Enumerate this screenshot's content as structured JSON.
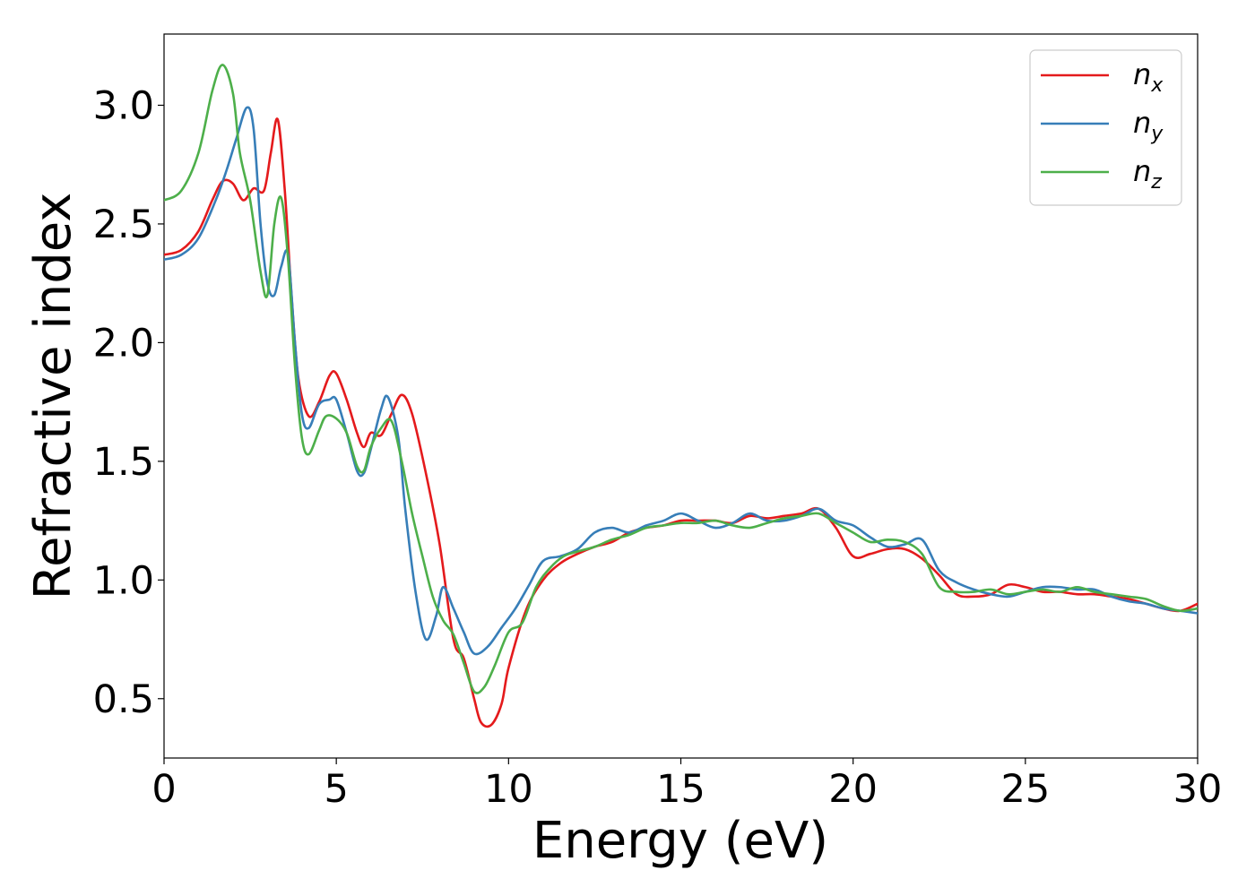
{
  "chart_data": {
    "type": "line",
    "title": "",
    "xlabel": "Energy (eV)",
    "ylabel": "Refractive index",
    "xlim": [
      0,
      30
    ],
    "ylim": [
      0.25,
      3.3
    ],
    "xticks": [
      0,
      5,
      10,
      15,
      20,
      25,
      30
    ],
    "xtick_labels": [
      "0",
      "5",
      "10",
      "15",
      "20",
      "25",
      "30"
    ],
    "yticks": [
      0.5,
      1.0,
      1.5,
      2.0,
      2.5,
      3.0
    ],
    "ytick_labels": [
      "0.5",
      "1.0",
      "1.5",
      "2.0",
      "2.5",
      "3.0"
    ],
    "grid": false,
    "legend_position": "top-right",
    "series": [
      {
        "name": "n",
        "subscript": "x",
        "color": "#e41a1c",
        "points": [
          [
            0,
            2.37
          ],
          [
            0.5,
            2.39
          ],
          [
            1.0,
            2.47
          ],
          [
            1.4,
            2.6
          ],
          [
            1.7,
            2.68
          ],
          [
            2.0,
            2.67
          ],
          [
            2.3,
            2.6
          ],
          [
            2.6,
            2.65
          ],
          [
            2.9,
            2.64
          ],
          [
            3.1,
            2.8
          ],
          [
            3.3,
            2.94
          ],
          [
            3.5,
            2.65
          ],
          [
            3.7,
            2.2
          ],
          [
            3.9,
            1.85
          ],
          [
            4.2,
            1.69
          ],
          [
            4.5,
            1.75
          ],
          [
            4.8,
            1.86
          ],
          [
            5.0,
            1.87
          ],
          [
            5.3,
            1.76
          ],
          [
            5.6,
            1.62
          ],
          [
            5.8,
            1.56
          ],
          [
            6.0,
            1.62
          ],
          [
            6.3,
            1.61
          ],
          [
            6.6,
            1.7
          ],
          [
            6.9,
            1.78
          ],
          [
            7.2,
            1.7
          ],
          [
            7.6,
            1.45
          ],
          [
            8.0,
            1.15
          ],
          [
            8.4,
            0.75
          ],
          [
            8.7,
            0.67
          ],
          [
            9.0,
            0.5
          ],
          [
            9.2,
            0.4
          ],
          [
            9.5,
            0.39
          ],
          [
            9.8,
            0.48
          ],
          [
            10.0,
            0.63
          ],
          [
            10.5,
            0.87
          ],
          [
            11.0,
            1.0
          ],
          [
            11.5,
            1.07
          ],
          [
            12.0,
            1.11
          ],
          [
            12.5,
            1.14
          ],
          [
            13.0,
            1.16
          ],
          [
            13.5,
            1.2
          ],
          [
            14.0,
            1.22
          ],
          [
            14.5,
            1.23
          ],
          [
            15.0,
            1.25
          ],
          [
            15.5,
            1.25
          ],
          [
            16.0,
            1.25
          ],
          [
            16.5,
            1.24
          ],
          [
            17.0,
            1.27
          ],
          [
            17.5,
            1.26
          ],
          [
            18.0,
            1.27
          ],
          [
            18.5,
            1.28
          ],
          [
            19.0,
            1.3
          ],
          [
            19.5,
            1.22
          ],
          [
            20.0,
            1.1
          ],
          [
            20.5,
            1.11
          ],
          [
            21.0,
            1.13
          ],
          [
            21.5,
            1.13
          ],
          [
            22.0,
            1.09
          ],
          [
            22.5,
            1.02
          ],
          [
            23.0,
            0.94
          ],
          [
            23.5,
            0.93
          ],
          [
            24.0,
            0.94
          ],
          [
            24.5,
            0.98
          ],
          [
            25.0,
            0.97
          ],
          [
            25.5,
            0.95
          ],
          [
            26.0,
            0.95
          ],
          [
            26.5,
            0.94
          ],
          [
            27.0,
            0.94
          ],
          [
            27.5,
            0.93
          ],
          [
            28.0,
            0.92
          ],
          [
            28.5,
            0.9
          ],
          [
            29.0,
            0.88
          ],
          [
            29.5,
            0.87
          ],
          [
            30.0,
            0.9
          ]
        ]
      },
      {
        "name": "n",
        "subscript": "y",
        "color": "#377eb8",
        "points": [
          [
            0,
            2.35
          ],
          [
            0.5,
            2.37
          ],
          [
            1.0,
            2.44
          ],
          [
            1.5,
            2.6
          ],
          [
            1.8,
            2.72
          ],
          [
            2.1,
            2.86
          ],
          [
            2.4,
            2.99
          ],
          [
            2.6,
            2.9
          ],
          [
            2.8,
            2.5
          ],
          [
            3.0,
            2.25
          ],
          [
            3.2,
            2.2
          ],
          [
            3.4,
            2.32
          ],
          [
            3.6,
            2.37
          ],
          [
            3.8,
            2.0
          ],
          [
            4.0,
            1.7
          ],
          [
            4.2,
            1.64
          ],
          [
            4.5,
            1.74
          ],
          [
            4.8,
            1.76
          ],
          [
            5.0,
            1.76
          ],
          [
            5.3,
            1.62
          ],
          [
            5.6,
            1.46
          ],
          [
            5.8,
            1.45
          ],
          [
            6.0,
            1.55
          ],
          [
            6.3,
            1.72
          ],
          [
            6.5,
            1.77
          ],
          [
            6.8,
            1.6
          ],
          [
            7.0,
            1.3
          ],
          [
            7.3,
            0.95
          ],
          [
            7.6,
            0.75
          ],
          [
            7.9,
            0.85
          ],
          [
            8.1,
            0.97
          ],
          [
            8.4,
            0.88
          ],
          [
            8.7,
            0.78
          ],
          [
            9.0,
            0.69
          ],
          [
            9.4,
            0.72
          ],
          [
            9.8,
            0.8
          ],
          [
            10.2,
            0.88
          ],
          [
            10.6,
            0.98
          ],
          [
            11.0,
            1.08
          ],
          [
            11.5,
            1.1
          ],
          [
            12.0,
            1.13
          ],
          [
            12.5,
            1.2
          ],
          [
            13.0,
            1.22
          ],
          [
            13.5,
            1.2
          ],
          [
            14.0,
            1.23
          ],
          [
            14.5,
            1.25
          ],
          [
            15.0,
            1.28
          ],
          [
            15.5,
            1.25
          ],
          [
            16.0,
            1.22
          ],
          [
            16.5,
            1.24
          ],
          [
            17.0,
            1.28
          ],
          [
            17.5,
            1.25
          ],
          [
            18.0,
            1.25
          ],
          [
            18.5,
            1.27
          ],
          [
            19.0,
            1.3
          ],
          [
            19.5,
            1.25
          ],
          [
            20.0,
            1.23
          ],
          [
            20.5,
            1.18
          ],
          [
            21.0,
            1.14
          ],
          [
            21.5,
            1.15
          ],
          [
            22.0,
            1.17
          ],
          [
            22.5,
            1.04
          ],
          [
            23.0,
            0.99
          ],
          [
            23.5,
            0.96
          ],
          [
            24.0,
            0.94
          ],
          [
            24.5,
            0.93
          ],
          [
            25.0,
            0.95
          ],
          [
            25.5,
            0.97
          ],
          [
            26.0,
            0.97
          ],
          [
            26.5,
            0.96
          ],
          [
            27.0,
            0.96
          ],
          [
            27.5,
            0.93
          ],
          [
            28.0,
            0.91
          ],
          [
            28.5,
            0.9
          ],
          [
            29.0,
            0.88
          ],
          [
            29.5,
            0.87
          ],
          [
            30.0,
            0.86
          ]
        ]
      },
      {
        "name": "n",
        "subscript": "z",
        "color": "#4daf4a",
        "points": [
          [
            0,
            2.6
          ],
          [
            0.5,
            2.64
          ],
          [
            1.0,
            2.8
          ],
          [
            1.4,
            3.06
          ],
          [
            1.7,
            3.17
          ],
          [
            2.0,
            3.05
          ],
          [
            2.2,
            2.8
          ],
          [
            2.5,
            2.6
          ],
          [
            2.8,
            2.3
          ],
          [
            3.0,
            2.2
          ],
          [
            3.2,
            2.5
          ],
          [
            3.4,
            2.61
          ],
          [
            3.6,
            2.35
          ],
          [
            3.8,
            1.9
          ],
          [
            4.0,
            1.6
          ],
          [
            4.2,
            1.53
          ],
          [
            4.5,
            1.63
          ],
          [
            4.7,
            1.69
          ],
          [
            5.0,
            1.68
          ],
          [
            5.3,
            1.62
          ],
          [
            5.6,
            1.48
          ],
          [
            5.8,
            1.46
          ],
          [
            6.0,
            1.56
          ],
          [
            6.3,
            1.64
          ],
          [
            6.6,
            1.67
          ],
          [
            6.9,
            1.5
          ],
          [
            7.2,
            1.28
          ],
          [
            7.5,
            1.1
          ],
          [
            7.8,
            0.93
          ],
          [
            8.1,
            0.83
          ],
          [
            8.4,
            0.77
          ],
          [
            8.7,
            0.65
          ],
          [
            9.0,
            0.53
          ],
          [
            9.3,
            0.55
          ],
          [
            9.6,
            0.64
          ],
          [
            10.0,
            0.78
          ],
          [
            10.4,
            0.82
          ],
          [
            10.8,
            0.97
          ],
          [
            11.2,
            1.05
          ],
          [
            11.6,
            1.1
          ],
          [
            12.0,
            1.12
          ],
          [
            12.5,
            1.14
          ],
          [
            13.0,
            1.17
          ],
          [
            13.5,
            1.19
          ],
          [
            14.0,
            1.22
          ],
          [
            14.5,
            1.23
          ],
          [
            15.0,
            1.24
          ],
          [
            15.5,
            1.24
          ],
          [
            16.0,
            1.25
          ],
          [
            16.5,
            1.23
          ],
          [
            17.0,
            1.22
          ],
          [
            17.5,
            1.24
          ],
          [
            18.0,
            1.26
          ],
          [
            18.5,
            1.27
          ],
          [
            19.0,
            1.28
          ],
          [
            19.5,
            1.24
          ],
          [
            20.0,
            1.2
          ],
          [
            20.5,
            1.16
          ],
          [
            21.0,
            1.17
          ],
          [
            21.5,
            1.16
          ],
          [
            22.0,
            1.11
          ],
          [
            22.5,
            0.97
          ],
          [
            23.0,
            0.95
          ],
          [
            23.5,
            0.95
          ],
          [
            24.0,
            0.96
          ],
          [
            24.5,
            0.94
          ],
          [
            25.0,
            0.95
          ],
          [
            25.5,
            0.96
          ],
          [
            26.0,
            0.95
          ],
          [
            26.5,
            0.97
          ],
          [
            27.0,
            0.95
          ],
          [
            27.5,
            0.94
          ],
          [
            28.0,
            0.93
          ],
          [
            28.5,
            0.92
          ],
          [
            29.0,
            0.89
          ],
          [
            29.5,
            0.87
          ],
          [
            30.0,
            0.88
          ]
        ]
      }
    ]
  }
}
